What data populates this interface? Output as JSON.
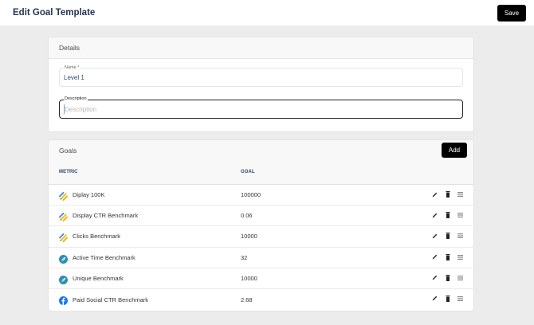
{
  "header": {
    "title": "Edit Goal Template",
    "save_label": "Save"
  },
  "details": {
    "title": "Details",
    "name_label": "Name *",
    "name_value": "Level 1",
    "description_label": "Description",
    "description_placeholder": "Description",
    "description_value": ""
  },
  "goals": {
    "title": "Goals",
    "add_label": "Add",
    "columns": {
      "metric": "METRIC",
      "goal": "GOAL"
    },
    "rows": [
      {
        "metric": "Diplay 100K",
        "goal": "100000",
        "icon": "google-ad-manager-icon"
      },
      {
        "metric": "Display CTR Benchmark",
        "goal": "0.06",
        "icon": "google-ad-manager-icon"
      },
      {
        "metric": "Clicks Benchmark",
        "goal": "10000",
        "icon": "google-ad-manager-icon"
      },
      {
        "metric": "Active Time Benchmark",
        "goal": "32",
        "icon": "feather-circle-icon"
      },
      {
        "metric": "Unique Benchmark",
        "goal": "10000",
        "icon": "feather-circle-icon"
      },
      {
        "metric": "Paid Social CTR Benchmark",
        "goal": "2.68",
        "icon": "facebook-icon"
      }
    ],
    "row_actions": [
      "edit-icon",
      "delete-icon",
      "drag-handle-icon"
    ]
  },
  "colors": {
    "title_text": "#1f3350",
    "column_header": "#2d4a6b",
    "button_bg": "#000000",
    "page_bg": "#ececec",
    "card_header_bg": "#f8f8f8",
    "feather_teal": "#2b8fb5",
    "facebook_blue": "#1877f2"
  }
}
